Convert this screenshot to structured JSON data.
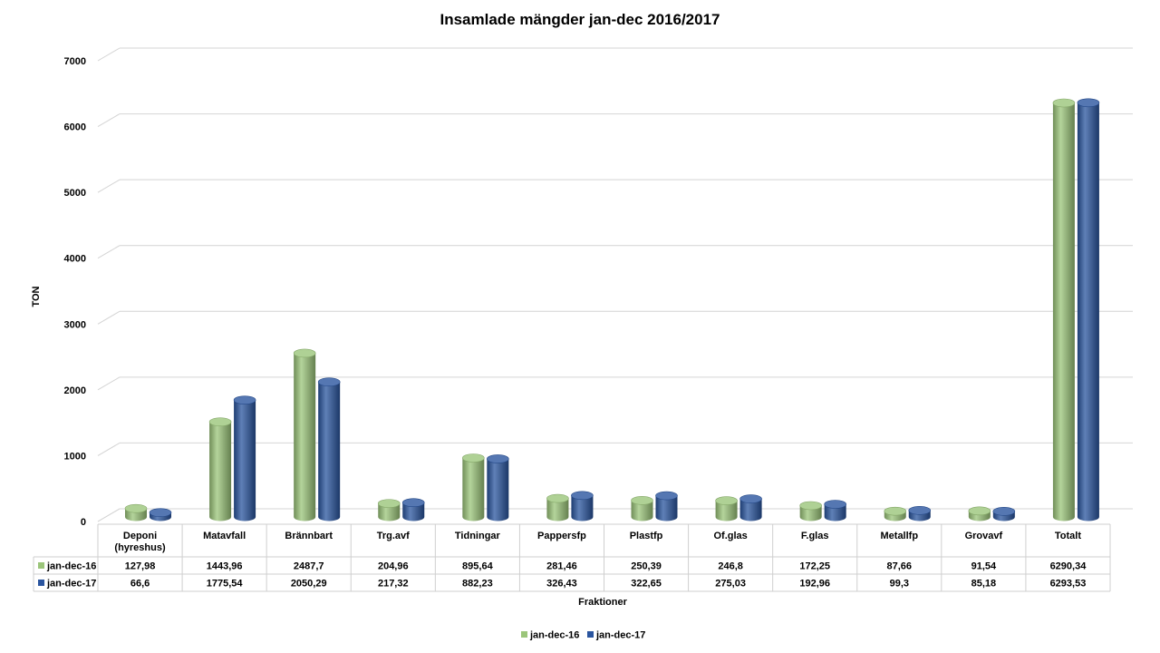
{
  "chart_data": {
    "type": "bar",
    "title": "Insamlade mängder jan-dec 2016/2017",
    "xlabel": "Fraktioner",
    "ylabel": "TON",
    "ylim": [
      0,
      7000
    ],
    "yticks": [
      "0",
      "1000",
      "2000",
      "3000",
      "4000",
      "5000",
      "6000",
      "7000"
    ],
    "grid": true,
    "legend_position": "bottom",
    "categories": [
      [
        "Deponi",
        "(hyreshus)"
      ],
      [
        "Matavfall"
      ],
      [
        "Brännbart"
      ],
      [
        "Trg.avf"
      ],
      [
        "Tidningar"
      ],
      [
        "Pappersfp"
      ],
      [
        "Plastfp"
      ],
      [
        "Of.glas"
      ],
      [
        "F.glas"
      ],
      [
        "Metallfp"
      ],
      [
        "Grovavf"
      ],
      [
        "Totalt"
      ]
    ],
    "series": [
      {
        "name": "jan-dec-16",
        "color": "#9BC57A",
        "values": [
          127.98,
          1443.96,
          2487.7,
          204.96,
          895.64,
          281.46,
          250.39,
          246.8,
          172.25,
          87.66,
          91.54,
          6290.34
        ],
        "labels": [
          "127,98",
          "1443,96",
          "2487,7",
          "204,96",
          "895,64",
          "281,46",
          "250,39",
          "246,8",
          "172,25",
          "87,66",
          "91,54",
          "6290,34"
        ]
      },
      {
        "name": "jan-dec-17",
        "color": "#2A559F",
        "values": [
          66.6,
          1775.54,
          2050.29,
          217.32,
          882.23,
          326.43,
          322.65,
          275.03,
          192.96,
          99.3,
          85.18,
          6293.53
        ],
        "labels": [
          "66,6",
          "1775,54",
          "2050,29",
          "217,32",
          "882,23",
          "326,43",
          "322,65",
          "275,03",
          "192,96",
          "99,3",
          "85,18",
          "6293,53"
        ]
      }
    ]
  }
}
